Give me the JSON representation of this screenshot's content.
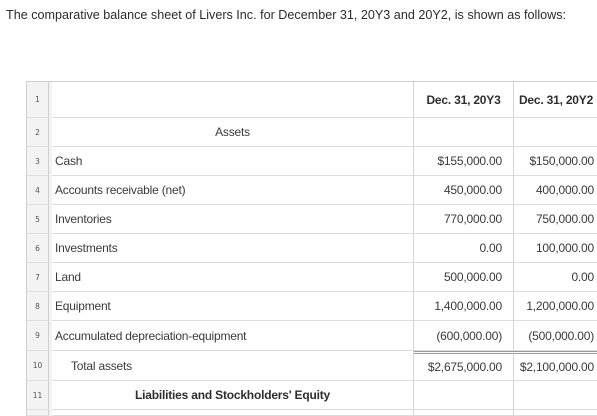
{
  "intro": "The comparative balance sheet of Livers Inc. for December 31, 20Y3 and 20Y2, is shown as follows:",
  "rows": [
    {
      "n": "1",
      "label": "",
      "y3": "Dec. 31, 20Y3",
      "y2": "Dec. 31, 20Y2"
    },
    {
      "n": "2",
      "label": "Assets",
      "y3": "",
      "y2": ""
    },
    {
      "n": "3",
      "label": "Cash",
      "y3": "$155,000.00",
      "y2": "$150,000.00"
    },
    {
      "n": "4",
      "label": "Accounts receivable (net)",
      "y3": "450,000.00",
      "y2": "400,000.00"
    },
    {
      "n": "5",
      "label": "Inventories",
      "y3": "770,000.00",
      "y2": "750,000.00"
    },
    {
      "n": "6",
      "label": "Investments",
      "y3": "0.00",
      "y2": "100,000.00"
    },
    {
      "n": "7",
      "label": "Land",
      "y3": "500,000.00",
      "y2": "0.00"
    },
    {
      "n": "8",
      "label": "Equipment",
      "y3": "1,400,000.00",
      "y2": "1,200,000.00"
    },
    {
      "n": "9",
      "label": "Accumulated depreciation-equipment",
      "y3": "(600,000.00)",
      "y2": "(500,000.00)"
    },
    {
      "n": "10",
      "label": "Total assets",
      "y3": "$2,675,000.00",
      "y2": "$2,100,000.00"
    },
    {
      "n": "11",
      "label": "Liabilities and Stockholders' Equity",
      "y3": "",
      "y2": ""
    }
  ]
}
